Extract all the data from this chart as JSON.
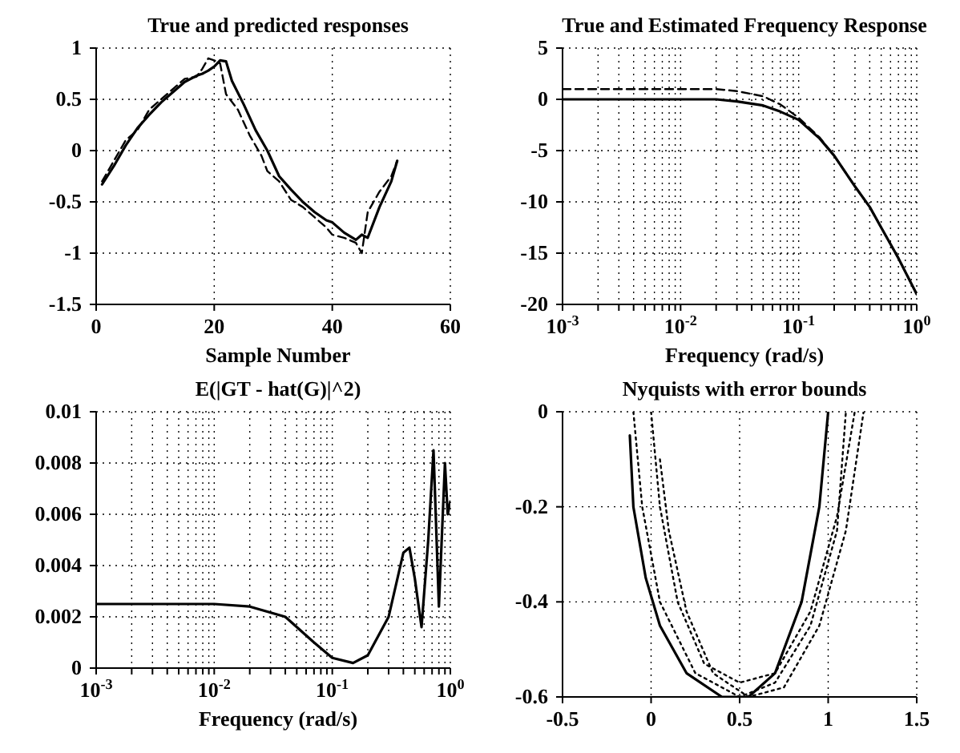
{
  "chart_data": [
    {
      "type": "line",
      "title": "True and predicted responses",
      "xlabel": "Sample Number",
      "xlim": [
        0,
        60
      ],
      "xticks": [
        0,
        20,
        40,
        60
      ],
      "ylim": [
        -1.5,
        1
      ],
      "yticks": [
        -1.5,
        -1,
        -0.5,
        0,
        0.5,
        1
      ],
      "grid": true,
      "series": [
        {
          "color": "#000000",
          "line_style": "solid",
          "x": [
            1,
            3,
            5,
            7,
            9,
            11,
            13,
            15,
            17,
            18,
            19,
            20,
            21,
            22,
            23,
            25,
            27,
            29,
            31,
            33,
            35,
            37,
            39,
            40,
            42,
            44,
            45,
            46,
            48,
            50,
            51
          ],
          "values": [
            -0.33,
            -0.15,
            0.05,
            0.22,
            0.35,
            0.47,
            0.57,
            0.67,
            0.73,
            0.75,
            0.78,
            0.82,
            0.88,
            0.87,
            0.68,
            0.45,
            0.2,
            0.0,
            -0.25,
            -0.38,
            -0.5,
            -0.6,
            -0.68,
            -0.7,
            -0.8,
            -0.87,
            -0.82,
            -0.85,
            -0.55,
            -0.3,
            -0.1
          ]
        },
        {
          "color": "#000000",
          "line_style": "dashed",
          "x": [
            1,
            3,
            5,
            7,
            9,
            11,
            13,
            15,
            17,
            18,
            19,
            20,
            21,
            22,
            24,
            26,
            28,
            29,
            31,
            33,
            35,
            37,
            39,
            40,
            42,
            44,
            45,
            46,
            48,
            50,
            51
          ],
          "values": [
            -0.3,
            -0.1,
            0.1,
            0.2,
            0.4,
            0.5,
            0.6,
            0.7,
            0.72,
            0.8,
            0.9,
            0.88,
            0.85,
            0.55,
            0.4,
            0.15,
            -0.05,
            -0.2,
            -0.3,
            -0.48,
            -0.55,
            -0.65,
            -0.75,
            -0.82,
            -0.85,
            -0.9,
            -1.0,
            -0.6,
            -0.4,
            -0.25,
            -0.1
          ]
        }
      ]
    },
    {
      "type": "line",
      "title": "True and Estimated Frequency Response",
      "xlabel": "Frequency (rad/s)",
      "log": "x",
      "xlim": [
        0.001,
        1
      ],
      "xticks": [
        {
          "value": 0.001,
          "label": "10$^{-3}$"
        },
        {
          "value": 0.002,
          "label": null
        },
        {
          "value": 0.003,
          "label": null
        },
        {
          "value": 0.004,
          "label": null
        },
        {
          "value": 0.005,
          "label": null
        },
        {
          "value": 0.006,
          "label": null
        },
        {
          "value": 0.007,
          "label": null
        },
        {
          "value": 0.008,
          "label": null
        },
        {
          "value": 0.009,
          "label": null
        },
        {
          "value": 0.01,
          "label": "10$^{-2}$"
        },
        {
          "value": 0.02,
          "label": null
        },
        {
          "value": 0.03,
          "label": null
        },
        {
          "value": 0.04,
          "label": null
        },
        {
          "value": 0.05,
          "label": null
        },
        {
          "value": 0.06,
          "label": null
        },
        {
          "value": 0.07,
          "label": null
        },
        {
          "value": 0.08,
          "label": null
        },
        {
          "value": 0.09,
          "label": null
        },
        {
          "value": 0.1,
          "label": "10$^{-1}$"
        },
        {
          "value": 0.2,
          "label": null
        },
        {
          "value": 0.3,
          "label": null
        },
        {
          "value": 0.4,
          "label": null
        },
        {
          "value": 0.5,
          "label": null
        },
        {
          "value": 0.6,
          "label": null
        },
        {
          "value": 0.7,
          "label": null
        },
        {
          "value": 0.8,
          "label": null
        },
        {
          "value": 0.9,
          "label": null
        },
        {
          "value": 1,
          "label": "10$^{0}$"
        }
      ],
      "ylim": [
        -20,
        5
      ],
      "yticks": [
        -20,
        -15,
        -10,
        -5,
        0,
        5
      ],
      "grid": true,
      "series": [
        {
          "color": "#000000",
          "line_style": "solid",
          "x": [
            0.001,
            0.003,
            0.01,
            0.02,
            0.03,
            0.05,
            0.07,
            0.1,
            0.15,
            0.2,
            0.3,
            0.4,
            0.5,
            0.7,
            1
          ],
          "values": [
            0,
            0,
            0,
            0,
            -0.2,
            -0.6,
            -1.2,
            -2,
            -3.8,
            -5.5,
            -8.5,
            -10.5,
            -12.5,
            -15.5,
            -19
          ]
        },
        {
          "color": "#000000",
          "line_style": "dashed",
          "x": [
            0.001,
            0.003,
            0.01,
            0.02,
            0.03,
            0.05,
            0.07,
            0.1,
            0.15,
            0.2,
            0.3,
            0.4,
            0.5,
            0.7,
            1
          ],
          "values": [
            1,
            1,
            1,
            1,
            0.8,
            0.3,
            -0.5,
            -1.8,
            -3.7,
            -5.5,
            -8.5,
            -10.5,
            -12.5,
            -15.5,
            -19
          ]
        }
      ]
    },
    {
      "type": "line",
      "title": "E(|GT - hat(G)|^2)",
      "xlabel": "Frequency (rad/s)",
      "log": "x",
      "xlim": [
        0.001,
        1
      ],
      "xticks": [
        {
          "value": 0.001,
          "label": "10$^{-3}$"
        },
        {
          "value": 0.002,
          "label": null
        },
        {
          "value": 0.003,
          "label": null
        },
        {
          "value": 0.004,
          "label": null
        },
        {
          "value": 0.005,
          "label": null
        },
        {
          "value": 0.006,
          "label": null
        },
        {
          "value": 0.007,
          "label": null
        },
        {
          "value": 0.008,
          "label": null
        },
        {
          "value": 0.009,
          "label": null
        },
        {
          "value": 0.01,
          "label": "10$^{-2}$"
        },
        {
          "value": 0.02,
          "label": null
        },
        {
          "value": 0.03,
          "label": null
        },
        {
          "value": 0.04,
          "label": null
        },
        {
          "value": 0.05,
          "label": null
        },
        {
          "value": 0.06,
          "label": null
        },
        {
          "value": 0.07,
          "label": null
        },
        {
          "value": 0.08,
          "label": null
        },
        {
          "value": 0.09,
          "label": null
        },
        {
          "value": 0.1,
          "label": "10$^{-1}$"
        },
        {
          "value": 0.2,
          "label": null
        },
        {
          "value": 0.3,
          "label": null
        },
        {
          "value": 0.4,
          "label": null
        },
        {
          "value": 0.5,
          "label": null
        },
        {
          "value": 0.6,
          "label": null
        },
        {
          "value": 0.7,
          "label": null
        },
        {
          "value": 0.8,
          "label": null
        },
        {
          "value": 0.9,
          "label": null
        },
        {
          "value": 1,
          "label": "10$^{0}$"
        }
      ],
      "ylim": [
        0,
        0.01
      ],
      "yticks": [
        0,
        0.002,
        0.004,
        0.006,
        0.008,
        0.01
      ],
      "grid": true,
      "series": [
        {
          "color": "#000000",
          "line_style": "solid",
          "x": [
            0.001,
            0.005,
            0.01,
            0.02,
            0.04,
            0.07,
            0.1,
            0.15,
            0.2,
            0.3,
            0.4,
            0.45,
            0.5,
            0.57,
            0.65,
            0.72,
            0.8,
            0.9,
            0.95,
            1
          ],
          "values": [
            0.0025,
            0.0025,
            0.0025,
            0.0024,
            0.002,
            0.001,
            0.0004,
            0.0002,
            0.0005,
            0.002,
            0.0045,
            0.0047,
            0.0035,
            0.0016,
            0.005,
            0.0085,
            0.0024,
            0.008,
            0.006,
            0.0065
          ]
        }
      ]
    },
    {
      "type": "line",
      "title": "Nyquists with error bounds",
      "xlim": [
        -0.5,
        1.5
      ],
      "xticks": [
        -0.5,
        0,
        0.5,
        1,
        1.5
      ],
      "ylim": [
        -0.6,
        0
      ],
      "yticks": [
        -0.6,
        -0.4,
        -0.2,
        0
      ],
      "grid": true,
      "series": [
        {
          "color": "#000000",
          "line_style": "solid",
          "x": [
            -0.12,
            -0.1,
            -0.03,
            0.05,
            0.2,
            0.4,
            0.55,
            0.7,
            0.85,
            0.95,
            1.0
          ],
          "values": [
            -0.05,
            -0.2,
            -0.35,
            -0.45,
            -0.55,
            -0.6,
            -0.6,
            -0.55,
            -0.4,
            -0.2,
            0
          ]
        },
        {
          "color": "#000000",
          "line_style": "dotted",
          "x": [
            -0.1,
            -0.05,
            0.05,
            0.25,
            0.5,
            0.7,
            0.9,
            1.05,
            1.1
          ],
          "values": [
            0,
            -0.2,
            -0.4,
            -0.55,
            -0.6,
            -0.57,
            -0.45,
            -0.25,
            0
          ]
        },
        {
          "color": "#000000",
          "line_style": "dotted",
          "x": [
            0,
            0.05,
            0.15,
            0.3,
            0.5,
            0.7,
            0.9,
            1.05,
            1.15
          ],
          "values": [
            0,
            -0.2,
            -0.4,
            -0.53,
            -0.57,
            -0.55,
            -0.42,
            -0.22,
            0
          ]
        },
        {
          "color": "#000000",
          "line_style": "dotted",
          "x": [
            0.05,
            0.1,
            0.2,
            0.35,
            0.55,
            0.75,
            0.95,
            1.1,
            1.2
          ],
          "values": [
            -0.1,
            -0.25,
            -0.42,
            -0.55,
            -0.6,
            -0.58,
            -0.45,
            -0.25,
            0
          ]
        }
      ]
    }
  ]
}
